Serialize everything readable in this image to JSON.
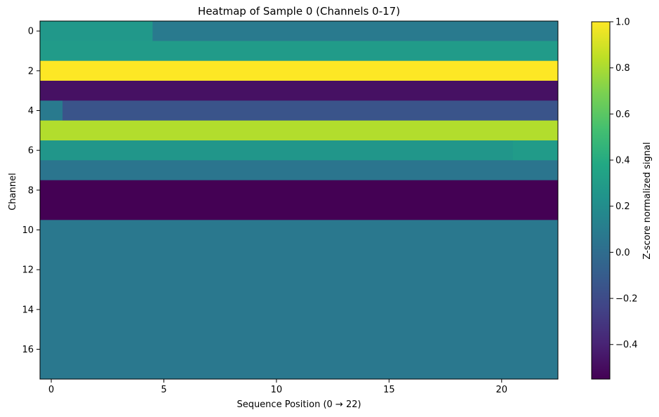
{
  "chart_data": {
    "type": "heatmap",
    "title": "Heatmap of Sample 0 (Channels 0-17)",
    "xlabel": "Sequence Position (0 → 22)",
    "ylabel": "Channel",
    "colorbar_label": "Z-score normalized signal",
    "x_ticks": [
      0,
      5,
      10,
      15,
      20
    ],
    "x_tick_labels": [
      "0",
      "5",
      "10",
      "15",
      "20"
    ],
    "y_ticks": [
      0,
      2,
      4,
      6,
      8,
      10,
      12,
      14,
      16
    ],
    "y_tick_labels": [
      "0",
      "2",
      "4",
      "6",
      "8",
      "10",
      "12",
      "14",
      "16"
    ],
    "x_range": [
      -0.5,
      22.5
    ],
    "y_range": [
      -0.5,
      17.5
    ],
    "n_positions": 23,
    "n_channels": 18,
    "colormap": "viridis",
    "vmin": -0.55,
    "vmax": 1.0,
    "colorbar_ticks": [
      -0.4,
      -0.2,
      0.0,
      0.2,
      0.4,
      0.6,
      0.8,
      1.0
    ],
    "colorbar_tick_labels": [
      "−0.4",
      "−0.2",
      "0.0",
      "0.2",
      "0.4",
      "0.6",
      "0.8",
      "1.0"
    ],
    "channel_segments": [
      [
        {
          "from": 0,
          "to": 4,
          "value": 0.27
        },
        {
          "from": 5,
          "to": 22,
          "value": 0.08
        }
      ],
      [
        {
          "from": 0,
          "to": 22,
          "value": 0.29
        }
      ],
      [
        {
          "from": 0,
          "to": 22,
          "value": 1.0
        }
      ],
      [
        {
          "from": 0,
          "to": 22,
          "value": -0.48
        }
      ],
      [
        {
          "from": 0,
          "to": 0,
          "value": 0.08
        },
        {
          "from": 1,
          "to": 22,
          "value": -0.15
        }
      ],
      [
        {
          "from": 0,
          "to": 22,
          "value": 0.82
        }
      ],
      [
        {
          "from": 0,
          "to": 20,
          "value": 0.26
        },
        {
          "from": 21,
          "to": 22,
          "value": 0.29
        }
      ],
      [
        {
          "from": 0,
          "to": 22,
          "value": 0.05
        }
      ],
      [
        {
          "from": 0,
          "to": 22,
          "value": -0.55
        }
      ],
      [
        {
          "from": 0,
          "to": 22,
          "value": -0.55
        }
      ],
      [
        {
          "from": 0,
          "to": 22,
          "value": 0.07
        }
      ],
      [
        {
          "from": 0,
          "to": 22,
          "value": 0.07
        }
      ],
      [
        {
          "from": 0,
          "to": 22,
          "value": 0.07
        }
      ],
      [
        {
          "from": 0,
          "to": 22,
          "value": 0.07
        }
      ],
      [
        {
          "from": 0,
          "to": 22,
          "value": 0.07
        }
      ],
      [
        {
          "from": 0,
          "to": 22,
          "value": 0.07
        }
      ],
      [
        {
          "from": 0,
          "to": 22,
          "value": 0.07
        }
      ],
      [
        {
          "from": 0,
          "to": 22,
          "value": 0.07
        }
      ]
    ]
  }
}
